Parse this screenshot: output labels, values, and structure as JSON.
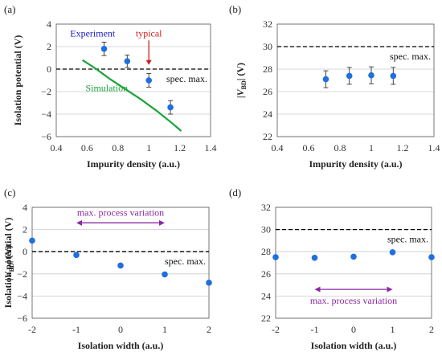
{
  "colors": {
    "point": "#1f6fe0",
    "simulation": "#1aa33a",
    "typical": "#d42020",
    "experiment_label": "#1a1acc",
    "variation": "#8b2aa0",
    "axis": "#555555",
    "grid": "#cccccc",
    "spec": "#000000"
  },
  "chart_data": [
    {
      "panel_label": "(a)",
      "type": "scatter",
      "xlabel": "Impurity density (a.u.)",
      "ylabel": "Isolation potential (V)",
      "xlim": [
        0.4,
        1.4
      ],
      "ylim": [
        -6,
        4
      ],
      "xticks": [
        0.4,
        0.6,
        0.8,
        1.0,
        1.2,
        1.4
      ],
      "xtick_labels": [
        "0.4",
        "0.6",
        "0.8",
        "1",
        "1.2",
        "1.4"
      ],
      "yticks": [
        -6,
        -4,
        -2,
        0,
        2,
        4
      ],
      "ytick_labels": [
        "−6",
        "−4",
        "−2",
        "0",
        "2",
        "4"
      ],
      "grid": "horizontal",
      "series": [
        {
          "name": "Experiment",
          "x": [
            0.71,
            0.86,
            1.0,
            1.14
          ],
          "y": [
            1.8,
            0.7,
            -1.0,
            -3.4
          ],
          "yerr": [
            0.6,
            0.55,
            0.6,
            0.6
          ]
        },
        {
          "name": "Simulation",
          "x": [
            0.57,
            0.65,
            0.75,
            0.85,
            0.95,
            1.05,
            1.15,
            1.21
          ],
          "y": [
            0.8,
            0.1,
            -0.9,
            -1.8,
            -2.7,
            -3.7,
            -4.8,
            -5.5
          ]
        }
      ],
      "spec_line": {
        "label": "spec. max.",
        "y": 0
      },
      "annotations": {
        "typical": {
          "text": "typical",
          "x": 1.0
        }
      }
    },
    {
      "panel_label": "(b)",
      "type": "scatter",
      "xlabel": "Impurity density (a.u.)",
      "ylabel_prefix": "|V",
      "ylabel_sub": "BD",
      "ylabel_suffix": "| (V)",
      "xlim": [
        0.4,
        1.4
      ],
      "ylim": [
        22,
        32
      ],
      "xticks": [
        0.4,
        0.6,
        0.8,
        1.0,
        1.2,
        1.4
      ],
      "xtick_labels": [
        "0.4",
        "0.6",
        "0.8",
        "1",
        "1.2",
        "1.4"
      ],
      "yticks": [
        22,
        24,
        26,
        28,
        30,
        32
      ],
      "ytick_labels": [
        "22",
        "24",
        "26",
        "28",
        "30",
        "32"
      ],
      "grid": "horizontal",
      "series": [
        {
          "x": [
            0.71,
            0.86,
            1.0,
            1.14
          ],
          "y": [
            27.1,
            27.4,
            27.45,
            27.4
          ],
          "yerr": [
            0.75,
            0.75,
            0.75,
            0.75
          ]
        }
      ],
      "spec_line": {
        "label": "spec. max.",
        "y": 30
      }
    },
    {
      "panel_label": "(c)",
      "type": "scatter",
      "xlabel": "Isolation width (a.u.)",
      "ylabel": "Isolation potential (V)",
      "xlim": [
        -2,
        2
      ],
      "ylim": [
        -6,
        4
      ],
      "xticks": [
        -2,
        -1,
        0,
        1,
        2
      ],
      "xtick_labels": [
        "-2",
        "-1",
        "0",
        "1",
        "2"
      ],
      "yticks": [
        -6,
        -4,
        -2,
        0,
        2,
        4
      ],
      "ytick_labels": [
        "−6",
        "−4",
        "−2",
        "0",
        "2",
        "4"
      ],
      "grid": "horizontal",
      "series": [
        {
          "x": [
            -2,
            -1,
            0,
            1,
            2
          ],
          "y": [
            1.0,
            -0.3,
            -1.25,
            -2.05,
            -2.8
          ]
        }
      ],
      "spec_line": {
        "label": "spec. max.",
        "y": 0
      },
      "annotations": {
        "variation": {
          "text": "max. process variation",
          "x_from": -1,
          "x_to": 1,
          "y": 2.6
        }
      }
    },
    {
      "panel_label": "(d)",
      "type": "scatter",
      "xlabel": "Isolation width (a.u.)",
      "ylabel_prefix": "|V",
      "ylabel_sub": "BD",
      "ylabel_suffix": "| (V)",
      "xlim": [
        -2,
        2
      ],
      "ylim": [
        22,
        32
      ],
      "xticks": [
        -2,
        -1,
        0,
        1,
        2
      ],
      "xtick_labels": [
        "-2",
        "-1",
        "0",
        "1",
        "2"
      ],
      "yticks": [
        22,
        24,
        26,
        28,
        30,
        32
      ],
      "ytick_labels": [
        "22",
        "24",
        "26",
        "28",
        "30",
        "32"
      ],
      "grid": "horizontal",
      "series": [
        {
          "x": [
            -2,
            -1,
            0,
            1,
            2
          ],
          "y": [
            27.5,
            27.45,
            27.55,
            27.95,
            27.5
          ]
        }
      ],
      "spec_line": {
        "label": "spec. max.",
        "y": 30
      },
      "annotations": {
        "variation": {
          "text": "max. process variation",
          "x_from": -1,
          "x_to": 1,
          "y": 24.6
        }
      }
    }
  ]
}
